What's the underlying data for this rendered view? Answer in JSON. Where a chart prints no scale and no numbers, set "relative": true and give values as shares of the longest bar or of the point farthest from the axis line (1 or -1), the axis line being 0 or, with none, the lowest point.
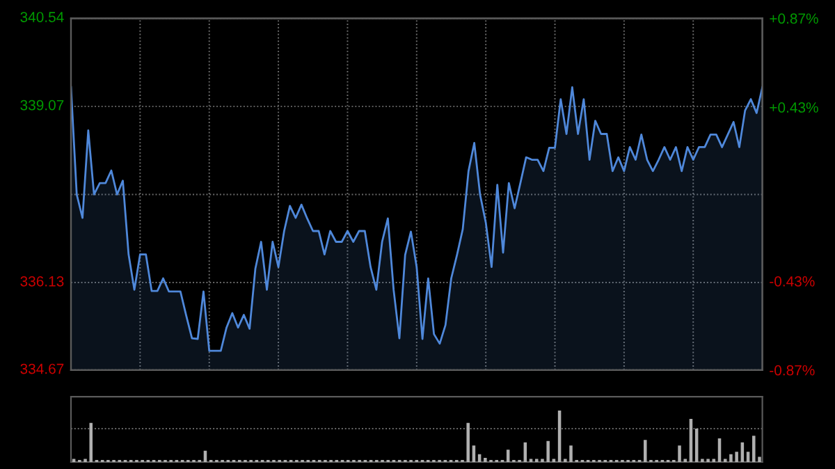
{
  "chart_data": [
    {
      "type": "area",
      "categories": [
        null,
        null,
        null,
        null,
        null,
        null,
        null,
        null,
        null,
        null,
        null,
        null,
        null,
        null,
        null,
        null,
        null,
        null,
        null,
        null,
        null,
        null,
        null,
        null,
        null,
        null,
        null,
        null,
        null,
        null,
        null,
        null,
        null,
        null,
        null,
        null,
        null,
        null,
        null,
        null,
        null,
        null,
        null,
        null,
        null,
        null,
        null,
        null,
        null,
        null,
        null,
        null,
        null,
        null,
        null,
        null,
        null,
        null,
        null,
        null,
        null,
        null,
        null,
        null,
        null,
        null,
        null,
        null,
        null,
        null,
        null,
        null,
        null,
        null,
        null,
        null,
        null,
        null,
        null,
        null,
        null,
        null,
        null,
        null,
        null,
        null,
        null,
        null,
        null,
        null,
        null,
        null,
        null,
        null,
        null,
        null,
        null,
        null,
        null,
        null,
        null,
        null,
        null,
        null,
        null,
        null,
        null,
        null,
        null,
        null,
        null,
        null,
        null,
        null,
        null,
        null,
        null,
        null,
        null,
        null,
        null
      ],
      "series": [
        {
          "color": "#4f88da",
          "values": [
            339.39,
            337.6,
            337.21,
            338.67,
            337.6,
            337.79,
            337.79,
            338.0,
            337.6,
            337.83,
            336.6,
            336.01,
            336.6,
            336.6,
            335.99,
            335.99,
            336.2,
            335.98,
            335.98,
            335.98,
            335.58,
            335.2,
            335.19,
            335.98,
            334.99,
            334.99,
            334.99,
            335.38,
            335.62,
            335.38,
            335.59,
            335.36,
            336.36,
            336.81,
            336.01,
            336.81,
            336.39,
            336.99,
            337.41,
            337.21,
            337.43,
            337.2,
            336.99,
            336.99,
            336.6,
            336.99,
            336.81,
            336.81,
            336.99,
            336.81,
            336.99,
            336.99,
            336.39,
            336.01,
            336.81,
            337.2,
            336.01,
            335.2,
            336.59,
            336.98,
            336.39,
            335.19,
            336.2,
            335.27,
            335.11,
            335.42,
            336.2,
            336.59,
            337.02,
            337.99,
            338.46,
            337.6,
            337.13,
            336.39,
            337.76,
            336.63,
            337.79,
            337.37,
            337.79,
            338.22,
            338.18,
            338.18,
            337.99,
            338.38,
            338.38,
            339.19,
            338.61,
            339.39,
            338.61,
            339.19,
            338.18,
            338.83,
            338.61,
            338.61,
            337.99,
            338.22,
            337.99,
            338.39,
            338.18,
            338.6,
            338.18,
            337.99,
            338.18,
            338.39,
            338.18,
            338.39,
            337.99,
            338.39,
            338.18,
            338.39,
            338.39,
            338.6,
            338.6,
            338.39,
            338.6,
            338.81,
            338.39,
            339.0,
            339.19,
            338.96,
            339.39
          ]
        }
      ],
      "ylim": [
        334.67,
        340.54
      ],
      "yticks": [
        334.67,
        336.13,
        {
          "value": 337.6,
          "label": null
        },
        339.07,
        340.54
      ],
      "y2lim": [
        -0.87,
        0.87
      ],
      "y2ticks": [
        {
          "value": -0.87,
          "label": "-0.87%"
        },
        {
          "value": -0.43,
          "label": "-0.43%"
        },
        {
          "value": 0.43,
          "label": "+0.43%"
        },
        {
          "value": 0.87,
          "label": "+0.87%"
        }
      ],
      "tick_labels": "y",
      "grid": true
    },
    {
      "type": "bar",
      "relative": true,
      "categories": [
        null,
        null,
        null,
        null,
        null,
        null,
        null,
        null,
        null,
        null,
        null,
        null,
        null,
        null,
        null,
        null,
        null,
        null,
        null,
        null,
        null,
        null,
        null,
        null,
        null,
        null,
        null,
        null,
        null,
        null,
        null,
        null,
        null,
        null,
        null,
        null,
        null,
        null,
        null,
        null,
        null,
        null,
        null,
        null,
        null,
        null,
        null,
        null,
        null,
        null,
        null,
        null,
        null,
        null,
        null,
        null,
        null,
        null,
        null,
        null,
        null,
        null,
        null,
        null,
        null,
        null,
        null,
        null,
        null,
        null,
        null,
        null,
        null,
        null,
        null,
        null,
        null,
        null,
        null,
        null,
        null,
        null,
        null,
        null,
        null,
        null,
        null,
        null,
        null,
        null,
        null,
        null,
        null,
        null,
        null,
        null,
        null,
        null,
        null,
        null,
        null,
        null,
        null,
        null,
        null,
        null,
        null,
        null,
        null,
        null,
        null,
        null,
        null,
        null,
        null,
        null,
        null,
        null,
        null,
        null,
        null
      ],
      "series": [
        {
          "color": "#b0b0b0",
          "values": [
            0.06,
            0.04,
            0.06,
            0.76,
            0.04,
            0.04,
            0.04,
            0.04,
            0.04,
            0.04,
            0.04,
            0.04,
            0.04,
            0.04,
            0.04,
            0.04,
            0.04,
            0.04,
            0.04,
            0.04,
            0.04,
            0.04,
            0.04,
            0.22,
            0.04,
            0.04,
            0.04,
            0.04,
            0.04,
            0.04,
            0.04,
            0.04,
            0.04,
            0.04,
            0.04,
            0.04,
            0.04,
            0.04,
            0.04,
            0.04,
            0.04,
            0.04,
            0.04,
            0.04,
            0.04,
            0.04,
            0.04,
            0.04,
            0.04,
            0.04,
            0.04,
            0.04,
            0.04,
            0.04,
            0.04,
            0.04,
            0.04,
            0.04,
            0.04,
            0.04,
            0.04,
            0.04,
            0.04,
            0.04,
            0.04,
            0.04,
            0.04,
            0.04,
            0.04,
            0.76,
            0.32,
            0.15,
            0.08,
            0.04,
            0.04,
            0.04,
            0.24,
            0.04,
            0.04,
            0.38,
            0.06,
            0.06,
            0.06,
            0.41,
            0.06,
            1.0,
            0.06,
            0.32,
            0.04,
            0.04,
            0.04,
            0.04,
            0.04,
            0.04,
            0.04,
            0.04,
            0.04,
            0.04,
            0.04,
            0.04,
            0.43,
            0.04,
            0.04,
            0.04,
            0.04,
            0.04,
            0.32,
            0.06,
            0.84,
            0.65,
            0.06,
            0.06,
            0.06,
            0.46,
            0.06,
            0.15,
            0.2,
            0.38,
            0.2,
            0.51,
            0.1
          ]
        }
      ],
      "tick_labels": false,
      "ref_lines": [
        {
          "axis": "y",
          "value": 0.65,
          "line_style": "dotted"
        }
      ]
    }
  ]
}
